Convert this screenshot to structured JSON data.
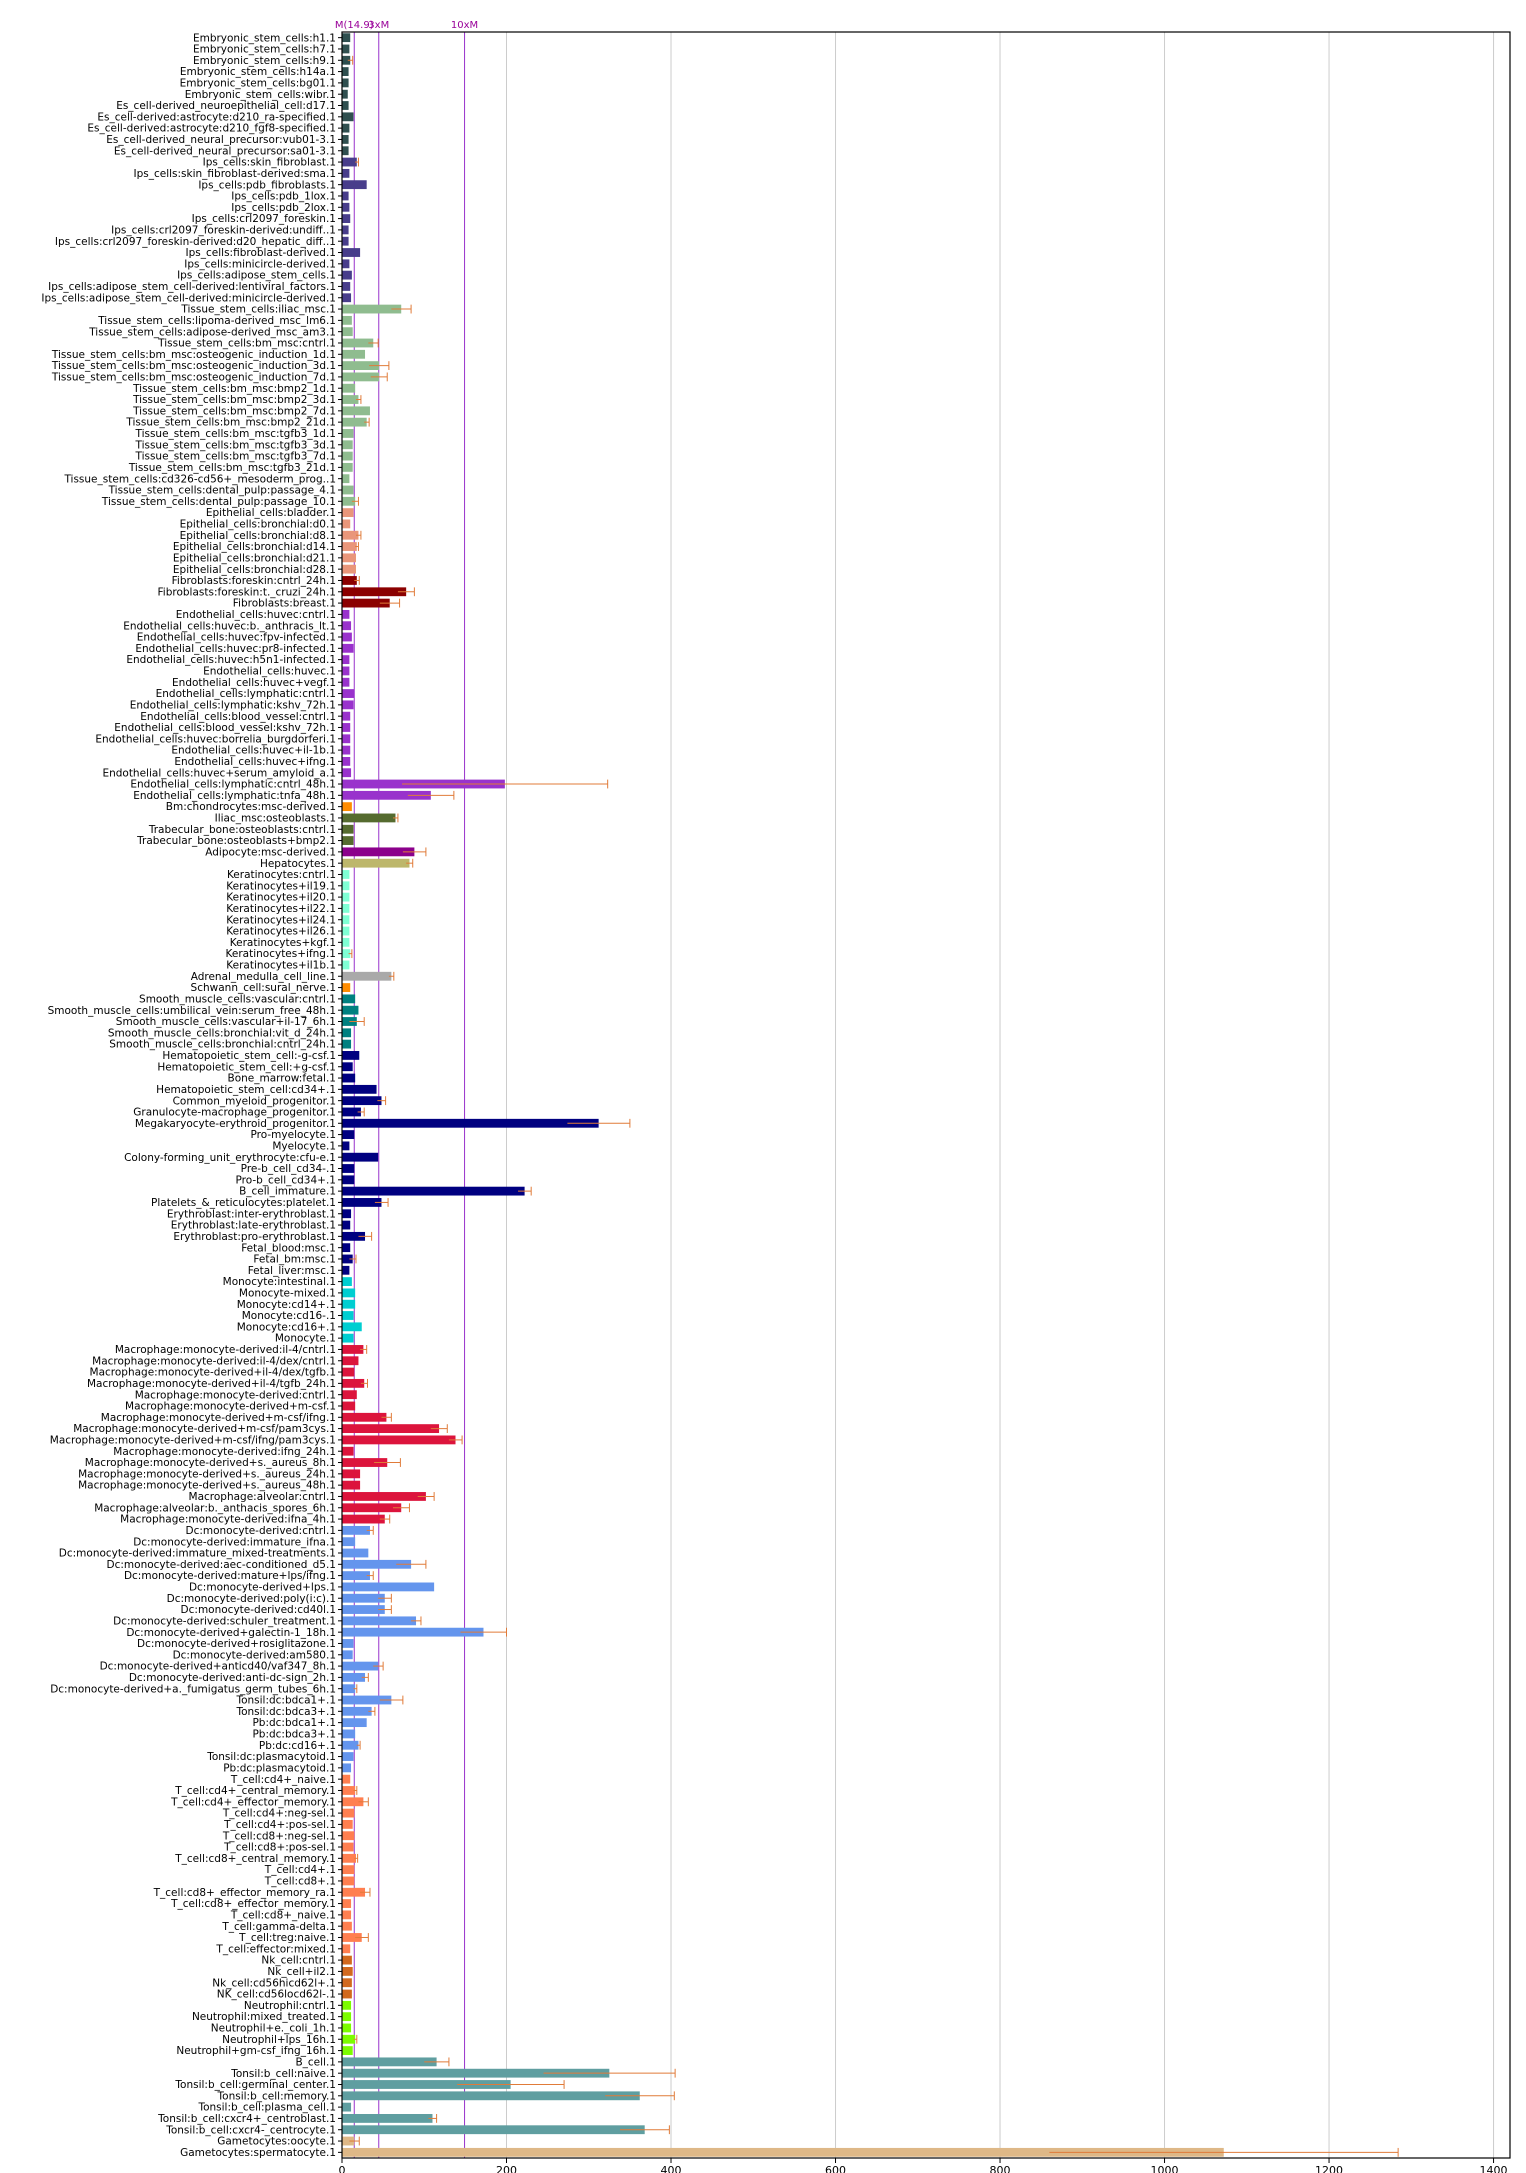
{
  "chart_data": {
    "type": "bar",
    "orientation": "horizontal",
    "title": "",
    "xlabel": "",
    "ylabel": "",
    "xlim": [
      0,
      1420
    ],
    "xticks": [
      0,
      200,
      400,
      600,
      800,
      1000,
      1200,
      1400
    ],
    "grid": {
      "x": true,
      "y": false
    },
    "legend": "none",
    "reference_lines": [
      {
        "value": 14.9,
        "label": "M(14.9)"
      },
      {
        "value": 44.7,
        "label": "3xM"
      },
      {
        "value": 149,
        "label": "10xM"
      }
    ],
    "ref_line_color": "#9933cc",
    "error_bar_color": "#e07b39",
    "categories": [
      "Embryonic_stem_cells:h1.1",
      "Embryonic_stem_cells:h7.1",
      "Embryonic_stem_cells:h9.1",
      "Embryonic_stem_cells:h14a.1",
      "Embryonic_stem_cells:bg01.1",
      "Embryonic_stem_cells:wibr.1",
      "Es_cell-derived_neuroepithelial_cell:d17.1",
      "Es_cell-derived:astrocyte:d210_ra-specified.1",
      "Es_cell-derived:astrocyte:d210_fgf8-specified.1",
      "Es_cell-derived_neural_precursor:vub01-3.1",
      "Es_cell-derived_neural_precursor:sa01-3.1",
      "Ips_cells:skin_fibroblast.1",
      "Ips_cells:skin_fibroblast-derived:sma.1",
      "Ips_cells:pdb_fibroblasts.1",
      "Ips_cells:pdb_1lox.1",
      "Ips_cells:pdb_2lox.1",
      "Ips_cells:crl2097_foreskin.1",
      "Ips_cells:crl2097_foreskin-derived:undiff..1",
      "Ips_cells:crl2097_foreskin-derived:d20_hepatic_diff..1",
      "Ips_cells:fibroblast-derived.1",
      "Ips_cells:minicircle-derived.1",
      "Ips_cells:adipose_stem_cells.1",
      "Ips_cells:adipose_stem_cell-derived:lentiviral_factors.1",
      "Ips_cells:adipose_stem_cell-derived:minicircle-derived.1",
      "Tissue_stem_cells:iliac_msc.1",
      "Tissue_stem_cells:lipoma-derived_msc_lm6.1",
      "Tissue_stem_cells:adipose-derived_msc_am3.1",
      "Tissue_stem_cells:bm_msc:cntrl.1",
      "Tissue_stem_cells:bm_msc:osteogenic_induction_1d.1",
      "Tissue_stem_cells:bm_msc:osteogenic_induction_3d.1",
      "Tissue_stem_cells:bm_msc:osteogenic_induction_7d.1",
      "Tissue_stem_cells:bm_msc:bmp2_1d.1",
      "Tissue_stem_cells:bm_msc:bmp2_3d.1",
      "Tissue_stem_cells:bm_msc:bmp2_7d.1",
      "Tissue_stem_cells:bm_msc:bmp2_21d.1",
      "Tissue_stem_cells:bm_msc:tgfb3_1d.1",
      "Tissue_stem_cells:bm_msc:tgfb3_3d.1",
      "Tissue_stem_cells:bm_msc:tgfb3_7d.1",
      "Tissue_stem_cells:bm_msc:tgfb3_21d.1",
      "Tissue_stem_cells:cd326-cd56+_mesoderm_prog..1",
      "Tissue_stem_cells:dental_pulp:passage_4.1",
      "Tissue_stem_cells:dental_pulp:passage_10.1",
      "Epithelial_cells:bladder.1",
      "Epithelial_cells:bronchial:d0.1",
      "Epithelial_cells:bronchial:d8.1",
      "Epithelial_cells:bronchial:d14.1",
      "Epithelial_cells:bronchial:d21.1",
      "Epithelial_cells:bronchial:d28.1",
      "Fibroblasts:foreskin:cntrl_24h.1",
      "Fibroblasts:foreskin:t._cruzi_24h.1",
      "Fibroblasts:breast.1",
      "Endothelial_cells:huvec:cntrl.1",
      "Endothelial_cells:huvec:b._anthracis_lt.1",
      "Endothelial_cells:huvec:fpv-infected.1",
      "Endothelial_cells:huvec:pr8-infected.1",
      "Endothelial_cells:huvec:h5n1-infected.1",
      "Endothelial_cells:huvec.1",
      "Endothelial_cells:huvec+vegf.1",
      "Endothelial_cells:lymphatic:cntrl.1",
      "Endothelial_cells:lymphatic:kshv_72h.1",
      "Endothelial_cells:blood_vessel:cntrl.1",
      "Endothelial_cells:blood_vessel:kshv_72h.1",
      "Endothelial_cells:huvec:borrelia_burgdorferi.1",
      "Endothelial_cells:huvec+il-1b.1",
      "Endothelial_cells:huvec+ifng.1",
      "Endothelial_cells:huvec+serum_amyloid_a.1",
      "Endothelial_cells:lymphatic:cntrl_48h.1",
      "Endothelial_cells:lymphatic:tnfa_48h.1",
      "Bm:chondrocytes:msc-derived.1",
      "Iliac_msc:osteoblasts.1",
      "Trabecular_bone:osteoblasts:cntrl.1",
      "Trabecular_bone:osteoblasts+bmp2.1",
      "Adipocyte:msc-derived.1",
      "Hepatocytes.1",
      "Keratinocytes:cntrl.1",
      "Keratinocytes+il19.1",
      "Keratinocytes+il20.1",
      "Keratinocytes+il22.1",
      "Keratinocytes+il24.1",
      "Keratinocytes+il26.1",
      "Keratinocytes+kgf.1",
      "Keratinocytes+ifng.1",
      "Keratinocytes+il1b.1",
      "Adrenal_medulla_cell_line.1",
      "Schwann_cell:sural_nerve.1",
      "Smooth_muscle_cells:vascular:cntrl.1",
      "Smooth_muscle_cells:umbilical_vein:serum_free_48h.1",
      "Smooth_muscle_cells:vascular+il-17_6h.1",
      "Smooth_muscle_cells:bronchial:vit_d_24h.1",
      "Smooth_muscle_cells:bronchial:cntrl_24h.1",
      "Hematopoietic_stem_cell:-g-csf.1",
      "Hematopoietic_stem_cell:+g-csf.1",
      "Bone_marrow:fetal.1",
      "Hematopoietic_stem_cell:cd34+.1",
      "Common_myeloid_progenitor.1",
      "Granulocyte-macrophage_progenitor.1",
      "Megakaryocyte-erythroid_progenitor.1",
      "Pro-myelocyte.1",
      "Myelocyte.1",
      "Colony-forming_unit_erythrocyte:cfu-e.1",
      "Pre-b_cell_cd34-.1",
      "Pro-b_cell_cd34+.1",
      "B_cell_immature.1",
      "Platelets_&_reticulocytes:platelet.1",
      "Erythroblast:inter-erythroblast.1",
      "Erythroblast:late-erythroblast.1",
      "Erythroblast:pro-erythroblast.1",
      "Fetal_blood:msc.1",
      "Fetal_bm:msc.1",
      "Fetal_liver:msc.1",
      "Monocyte:intestinal.1",
      "Monocyte-mixed.1",
      "Monocyte:cd14+.1",
      "Monocyte:cd16-.1",
      "Monocyte:cd16+.1",
      "Monocyte.1",
      "Macrophage:monocyte-derived:il-4/cntrl.1",
      "Macrophage:monocyte-derived:il-4/dex/cntrl.1",
      "Macrophage:monocyte-derived+il-4/dex/tgfb.1",
      "Macrophage:monocyte-derived+il-4/tgfb_24h.1",
      "Macrophage:monocyte-derived:cntrl.1",
      "Macrophage:monocyte-derived+m-csf.1",
      "Macrophage:monocyte-derived+m-csf/ifng.1",
      "Macrophage:monocyte-derived+m-csf/pam3cys.1",
      "Macrophage:monocyte-derived+m-csf/ifng/pam3cys.1",
      "Macrophage:monocyte-derived:ifng_24h.1",
      "Macrophage:monocyte-derived+s._aureus_8h.1",
      "Macrophage:monocyte-derived+s._aureus_24h.1",
      "Macrophage:monocyte-derived+s._aureus_48h.1",
      "Macrophage:alveolar:cntrl.1",
      "Macrophage:alveolar:b._anthacis_spores_6h.1",
      "Macrophage:monocyte-derived:ifna_4h.1",
      "Dc:monocyte-derived:cntrl.1",
      "Dc:monocyte-derived:immature_ifna.1",
      "Dc:monocyte-derived:immature_mixed-treatments.1",
      "Dc:monocyte-derived:aec-conditioned_d5.1",
      "Dc:monocyte-derived:mature+lps/ifng.1",
      "Dc:monocyte-derived+lps.1",
      "Dc:monocyte-derived:poly(i:c).1",
      "Dc:monocyte-derived:cd40l.1",
      "Dc:monocyte-derived:schuler_treatment.1",
      "Dc:monocyte-derived+galectin-1_18h.1",
      "Dc:monocyte-derived+rosiglitazone.1",
      "Dc:monocyte-derived:am580.1",
      "Dc:monocyte-derived+anticd40/vaf347_8h.1",
      "Dc:monocyte-derived:anti-dc-sign_2h.1",
      "Dc:monocyte-derived+a._fumigatus_germ_tubes_6h.1",
      "Tonsil:dc:bdca1+.1",
      "Tonsil:dc:bdca3+.1",
      "Pb:dc:bdca1+.1",
      "Pb:dc:bdca3+.1",
      "Pb:dc:cd16+.1",
      "Tonsil:dc:plasmacytoid.1",
      "Pb:dc:plasmacytoid.1",
      "T_cell:cd4+_naive.1",
      "T_cell:cd4+_central_memory.1",
      "T_cell:cd4+_effector_memory.1",
      "T_cell:cd4+:neg-sel.1",
      "T_cell:cd4+:pos-sel.1",
      "T_cell:cd8+:neg-sel.1",
      "T_cell:cd8+:pos-sel.1",
      "T_cell:cd8+_central_memory.1",
      "T_cell:cd4+.1",
      "T_cell:cd8+.1",
      "T_cell:cd8+_effector_memory_ra.1",
      "T_cell:cd8+_effector_memory.1",
      "T_cell:cd8+_naive.1",
      "T_cell:gamma-delta.1",
      "T_cell:treg:naive.1",
      "T_cell:effector:mixed.1",
      "Nk_cell:cntrl.1",
      "Nk_cell+il2.1",
      "Nk_cell:cd56hicd62l+.1",
      "NK_cell:cd56locd62l-.1",
      "Neutrophil:cntrl.1",
      "Neutrophil:mixed_treated.1",
      "Neutrophil+e._coli_1h.1",
      "Neutrophil+lps_16h.1",
      "Neutrophil+gm-csf_ifng_16h.1",
      "B_cell.1",
      "Tonsil:b_cell:naive.1",
      "Tonsil:b_cell:germinal_center.1",
      "Tonsil:b_cell:memory.1",
      "Tonsil:b_cell:plasma_cell.1",
      "Tonsil:b_cell:cxcr4+_centroblast.1",
      "Tonsil:b_cell:cxcr4-_centrocyte.1",
      "Gametocytes:oocyte.1",
      "Gametocytes:spermatocyte.1"
    ],
    "values": [
      10,
      9,
      10,
      8,
      8,
      7,
      8,
      14,
      9,
      8,
      8,
      18,
      9,
      30,
      8,
      9,
      10,
      8,
      8,
      22,
      9,
      12,
      10,
      11,
      72,
      12,
      13,
      38,
      28,
      45,
      45,
      16,
      20,
      34,
      30,
      14,
      13,
      13,
      13,
      9,
      14,
      16,
      14,
      10,
      20,
      18,
      17,
      17,
      18,
      78,
      58,
      9,
      11,
      12,
      14,
      9,
      9,
      9,
      15,
      14,
      10,
      10,
      10,
      10,
      10,
      11,
      198,
      108,
      12,
      65,
      14,
      14,
      88,
      82,
      9,
      9,
      9,
      9,
      9,
      9,
      9,
      10,
      9,
      60,
      10,
      16,
      20,
      18,
      11,
      11,
      21,
      13,
      16,
      42,
      48,
      23,
      312,
      15,
      9,
      44,
      15,
      15,
      222,
      48,
      11,
      10,
      28,
      10,
      13,
      9,
      12,
      16,
      16,
      14,
      24,
      14,
      26,
      20,
      15,
      27,
      18,
      16,
      54,
      118,
      138,
      14,
      55,
      22,
      22,
      102,
      72,
      52,
      34,
      16,
      32,
      84,
      34,
      112,
      52,
      52,
      90,
      172,
      14,
      13,
      44,
      28,
      16,
      60,
      36,
      30,
      16,
      20,
      14,
      11,
      10,
      16,
      26,
      15,
      13,
      15,
      14,
      17,
      15,
      15,
      28,
      11,
      11,
      12,
      24,
      10,
      12,
      13,
      12,
      12,
      11,
      11,
      11,
      16,
      13,
      115,
      325,
      205,
      362,
      11,
      110,
      368,
      15,
      1072
    ],
    "errors": [
      0,
      0,
      3,
      0,
      0,
      0,
      0,
      0,
      0,
      0,
      0,
      2,
      0,
      0,
      0,
      0,
      0,
      0,
      0,
      0,
      0,
      0,
      0,
      0,
      12,
      0,
      0,
      6,
      0,
      12,
      10,
      0,
      3,
      0,
      3,
      0,
      0,
      0,
      0,
      0,
      0,
      4,
      0,
      0,
      3,
      2,
      0,
      0,
      3,
      10,
      12,
      0,
      0,
      0,
      0,
      0,
      0,
      0,
      0,
      0,
      0,
      0,
      0,
      0,
      0,
      0,
      125,
      28,
      0,
      3,
      0,
      0,
      14,
      4,
      0,
      0,
      0,
      0,
      0,
      0,
      0,
      2,
      0,
      3,
      0,
      0,
      0,
      9,
      0,
      0,
      0,
      0,
      0,
      0,
      5,
      4,
      38,
      0,
      0,
      0,
      0,
      0,
      8,
      8,
      0,
      0,
      8,
      0,
      4,
      0,
      0,
      0,
      0,
      0,
      0,
      0,
      4,
      0,
      0,
      4,
      0,
      0,
      6,
      10,
      8,
      0,
      16,
      0,
      0,
      10,
      10,
      6,
      4,
      0,
      0,
      18,
      4,
      0,
      8,
      8,
      6,
      28,
      0,
      0,
      6,
      4,
      2,
      14,
      4,
      0,
      0,
      2,
      0,
      0,
      0,
      2,
      6,
      0,
      0,
      0,
      0,
      2,
      0,
      0,
      6,
      0,
      0,
      0,
      8,
      0,
      0,
      0,
      0,
      0,
      0,
      0,
      0,
      2,
      0,
      15,
      80,
      65,
      42,
      0,
      5,
      30,
      6,
      212
    ],
    "colors": [
      "#2f4f4f",
      "#2f4f4f",
      "#2f4f4f",
      "#2f4f4f",
      "#2f4f4f",
      "#2f4f4f",
      "#2f4f4f",
      "#2f4f4f",
      "#2f4f4f",
      "#2f4f4f",
      "#2f4f4f",
      "#483d8b",
      "#483d8b",
      "#483d8b",
      "#483d8b",
      "#483d8b",
      "#483d8b",
      "#483d8b",
      "#483d8b",
      "#483d8b",
      "#483d8b",
      "#483d8b",
      "#483d8b",
      "#483d8b",
      "#8fbc8f",
      "#8fbc8f",
      "#8fbc8f",
      "#8fbc8f",
      "#8fbc8f",
      "#8fbc8f",
      "#8fbc8f",
      "#8fbc8f",
      "#8fbc8f",
      "#8fbc8f",
      "#8fbc8f",
      "#8fbc8f",
      "#8fbc8f",
      "#8fbc8f",
      "#8fbc8f",
      "#8fbc8f",
      "#8fbc8f",
      "#8fbc8f",
      "#e9967a",
      "#e9967a",
      "#e9967a",
      "#e9967a",
      "#e9967a",
      "#e9967a",
      "#8b0000",
      "#8b0000",
      "#8b0000",
      "#9932cc",
      "#9932cc",
      "#9932cc",
      "#9932cc",
      "#9932cc",
      "#9932cc",
      "#9932cc",
      "#9932cc",
      "#9932cc",
      "#9932cc",
      "#9932cc",
      "#9932cc",
      "#9932cc",
      "#9932cc",
      "#9932cc",
      "#9932cc",
      "#9932cc",
      "#ff8c00",
      "#556b2f",
      "#556b2f",
      "#556b2f",
      "#8b008b",
      "#bdb76b",
      "#7fffd4",
      "#7fffd4",
      "#7fffd4",
      "#7fffd4",
      "#7fffd4",
      "#7fffd4",
      "#7fffd4",
      "#7fffd4",
      "#7fffd4",
      "#a9a9a9",
      "#ff8c00",
      "#008080",
      "#008080",
      "#008080",
      "#008080",
      "#008080",
      "#000080",
      "#000080",
      "#000080",
      "#000080",
      "#000080",
      "#000080",
      "#000080",
      "#000080",
      "#000080",
      "#000080",
      "#000080",
      "#000080",
      "#000080",
      "#000080",
      "#000080",
      "#000080",
      "#000080",
      "#000080",
      "#000080",
      "#000080",
      "#00ced1",
      "#00ced1",
      "#00ced1",
      "#00ced1",
      "#00ced1",
      "#00ced1",
      "#dc143c",
      "#dc143c",
      "#dc143c",
      "#dc143c",
      "#dc143c",
      "#dc143c",
      "#dc143c",
      "#dc143c",
      "#dc143c",
      "#dc143c",
      "#dc143c",
      "#dc143c",
      "#dc143c",
      "#dc143c",
      "#dc143c",
      "#dc143c",
      "#6495ed",
      "#6495ed",
      "#6495ed",
      "#6495ed",
      "#6495ed",
      "#6495ed",
      "#6495ed",
      "#6495ed",
      "#6495ed",
      "#6495ed",
      "#6495ed",
      "#6495ed",
      "#6495ed",
      "#6495ed",
      "#6495ed",
      "#6495ed",
      "#6495ed",
      "#6495ed",
      "#6495ed",
      "#6495ed",
      "#6495ed",
      "#6495ed",
      "#ff7f50",
      "#ff7f50",
      "#ff7f50",
      "#ff7f50",
      "#ff7f50",
      "#ff7f50",
      "#ff7f50",
      "#ff7f50",
      "#ff7f50",
      "#ff7f50",
      "#ff7f50",
      "#ff7f50",
      "#ff7f50",
      "#ff7f50",
      "#ff7f50",
      "#ff7f50",
      "#d2691e",
      "#d2691e",
      "#d2691e",
      "#d2691e",
      "#7cfc00",
      "#7cfc00",
      "#7cfc00",
      "#7cfc00",
      "#7cfc00",
      "#5f9ea0",
      "#5f9ea0",
      "#5f9ea0",
      "#5f9ea0",
      "#5f9ea0",
      "#5f9ea0",
      "#5f9ea0",
      "#deb887",
      "#deb887"
    ]
  }
}
